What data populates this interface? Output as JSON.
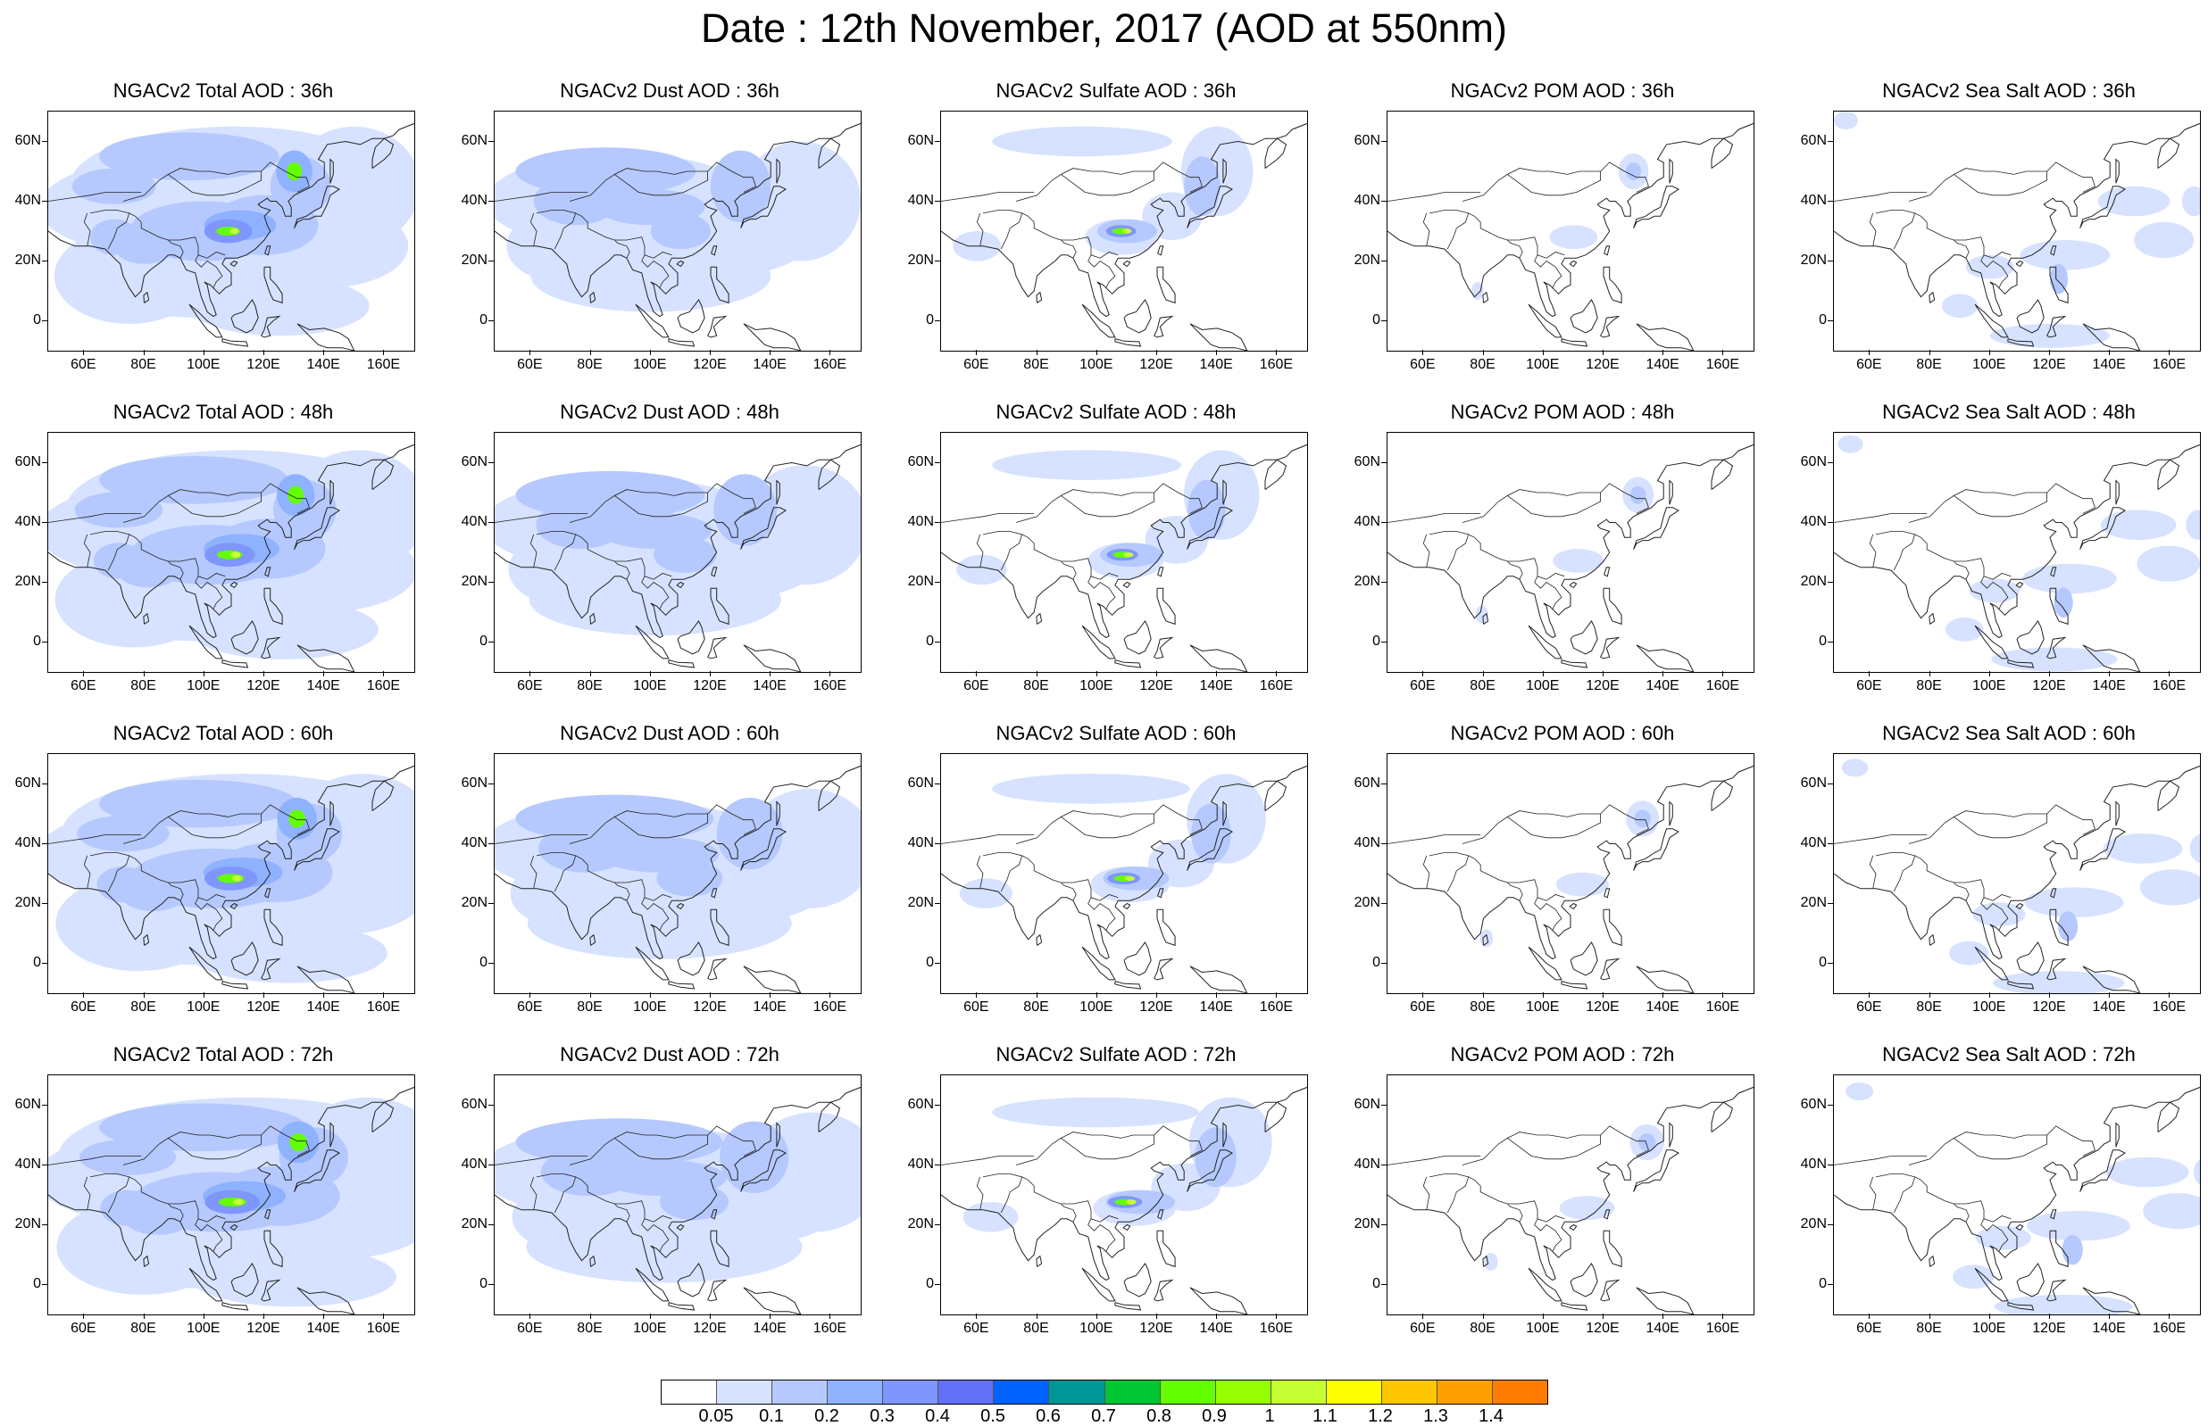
{
  "title": "Date : 12th November, 2017 (AOD at 550nm)",
  "lat_labels": [
    "60N",
    "40N",
    "20N",
    "0"
  ],
  "lon_labels": [
    "60E",
    "80E",
    "100E",
    "120E",
    "140E",
    "160E"
  ],
  "colorbar": {
    "labels": [
      "0.05",
      "0.1",
      "0.2",
      "0.3",
      "0.4",
      "0.5",
      "0.6",
      "0.7",
      "0.8",
      "0.9",
      "1",
      "1.1",
      "1.2",
      "1.3",
      "1.4"
    ],
    "colors": [
      "#ffffff",
      "#d6e2ff",
      "#b5c9ff",
      "#8fb2ff",
      "#7f96ff",
      "#6370f8",
      "#0063ff",
      "#009696",
      "#00c633",
      "#63ff00",
      "#96ff00",
      "#c6ff33",
      "#ffff00",
      "#ffc600",
      "#ffa000",
      "#ff7c00",
      "#ff1900"
    ]
  },
  "rows": [
    {
      "hour": "36h",
      "panels": [
        {
          "type": "total",
          "title": "NGACv2 Total AOD : 36h"
        },
        {
          "type": "dust",
          "title": "NGACv2 Dust AOD : 36h"
        },
        {
          "type": "sulfate",
          "title": "NGACv2 Sulfate AOD : 36h"
        },
        {
          "type": "pom",
          "title": "NGACv2 POM AOD : 36h"
        },
        {
          "type": "seasalt",
          "title": "NGACv2 Sea Salt AOD : 36h"
        }
      ]
    },
    {
      "hour": "48h",
      "panels": [
        {
          "type": "total",
          "title": "NGACv2 Total AOD : 48h"
        },
        {
          "type": "dust",
          "title": "NGACv2 Dust AOD : 48h"
        },
        {
          "type": "sulfate",
          "title": "NGACv2 Sulfate AOD : 48h"
        },
        {
          "type": "pom",
          "title": "NGACv2 POM AOD : 48h"
        },
        {
          "type": "seasalt",
          "title": "NGACv2 Sea Salt AOD : 48h"
        }
      ]
    },
    {
      "hour": "60h",
      "panels": [
        {
          "type": "total",
          "title": "NGACv2 Total AOD : 60h"
        },
        {
          "type": "dust",
          "title": "NGACv2 Dust AOD : 60h"
        },
        {
          "type": "sulfate",
          "title": "NGACv2 Sulfate AOD : 60h"
        },
        {
          "type": "pom",
          "title": "NGACv2 POM AOD : 60h"
        },
        {
          "type": "seasalt",
          "title": "NGACv2 Sea Salt AOD : 60h"
        }
      ]
    },
    {
      "hour": "72h",
      "panels": [
        {
          "type": "total",
          "title": "NGACv2 Total AOD : 72h"
        },
        {
          "type": "dust",
          "title": "NGACv2 Dust AOD : 72h"
        },
        {
          "type": "sulfate",
          "title": "NGACv2 Sulfate AOD : 72h"
        },
        {
          "type": "pom",
          "title": "NGACv2 POM AOD : 72h"
        },
        {
          "type": "seasalt",
          "title": "NGACv2 Sea Salt  AOD : 72h"
        }
      ]
    }
  ]
}
